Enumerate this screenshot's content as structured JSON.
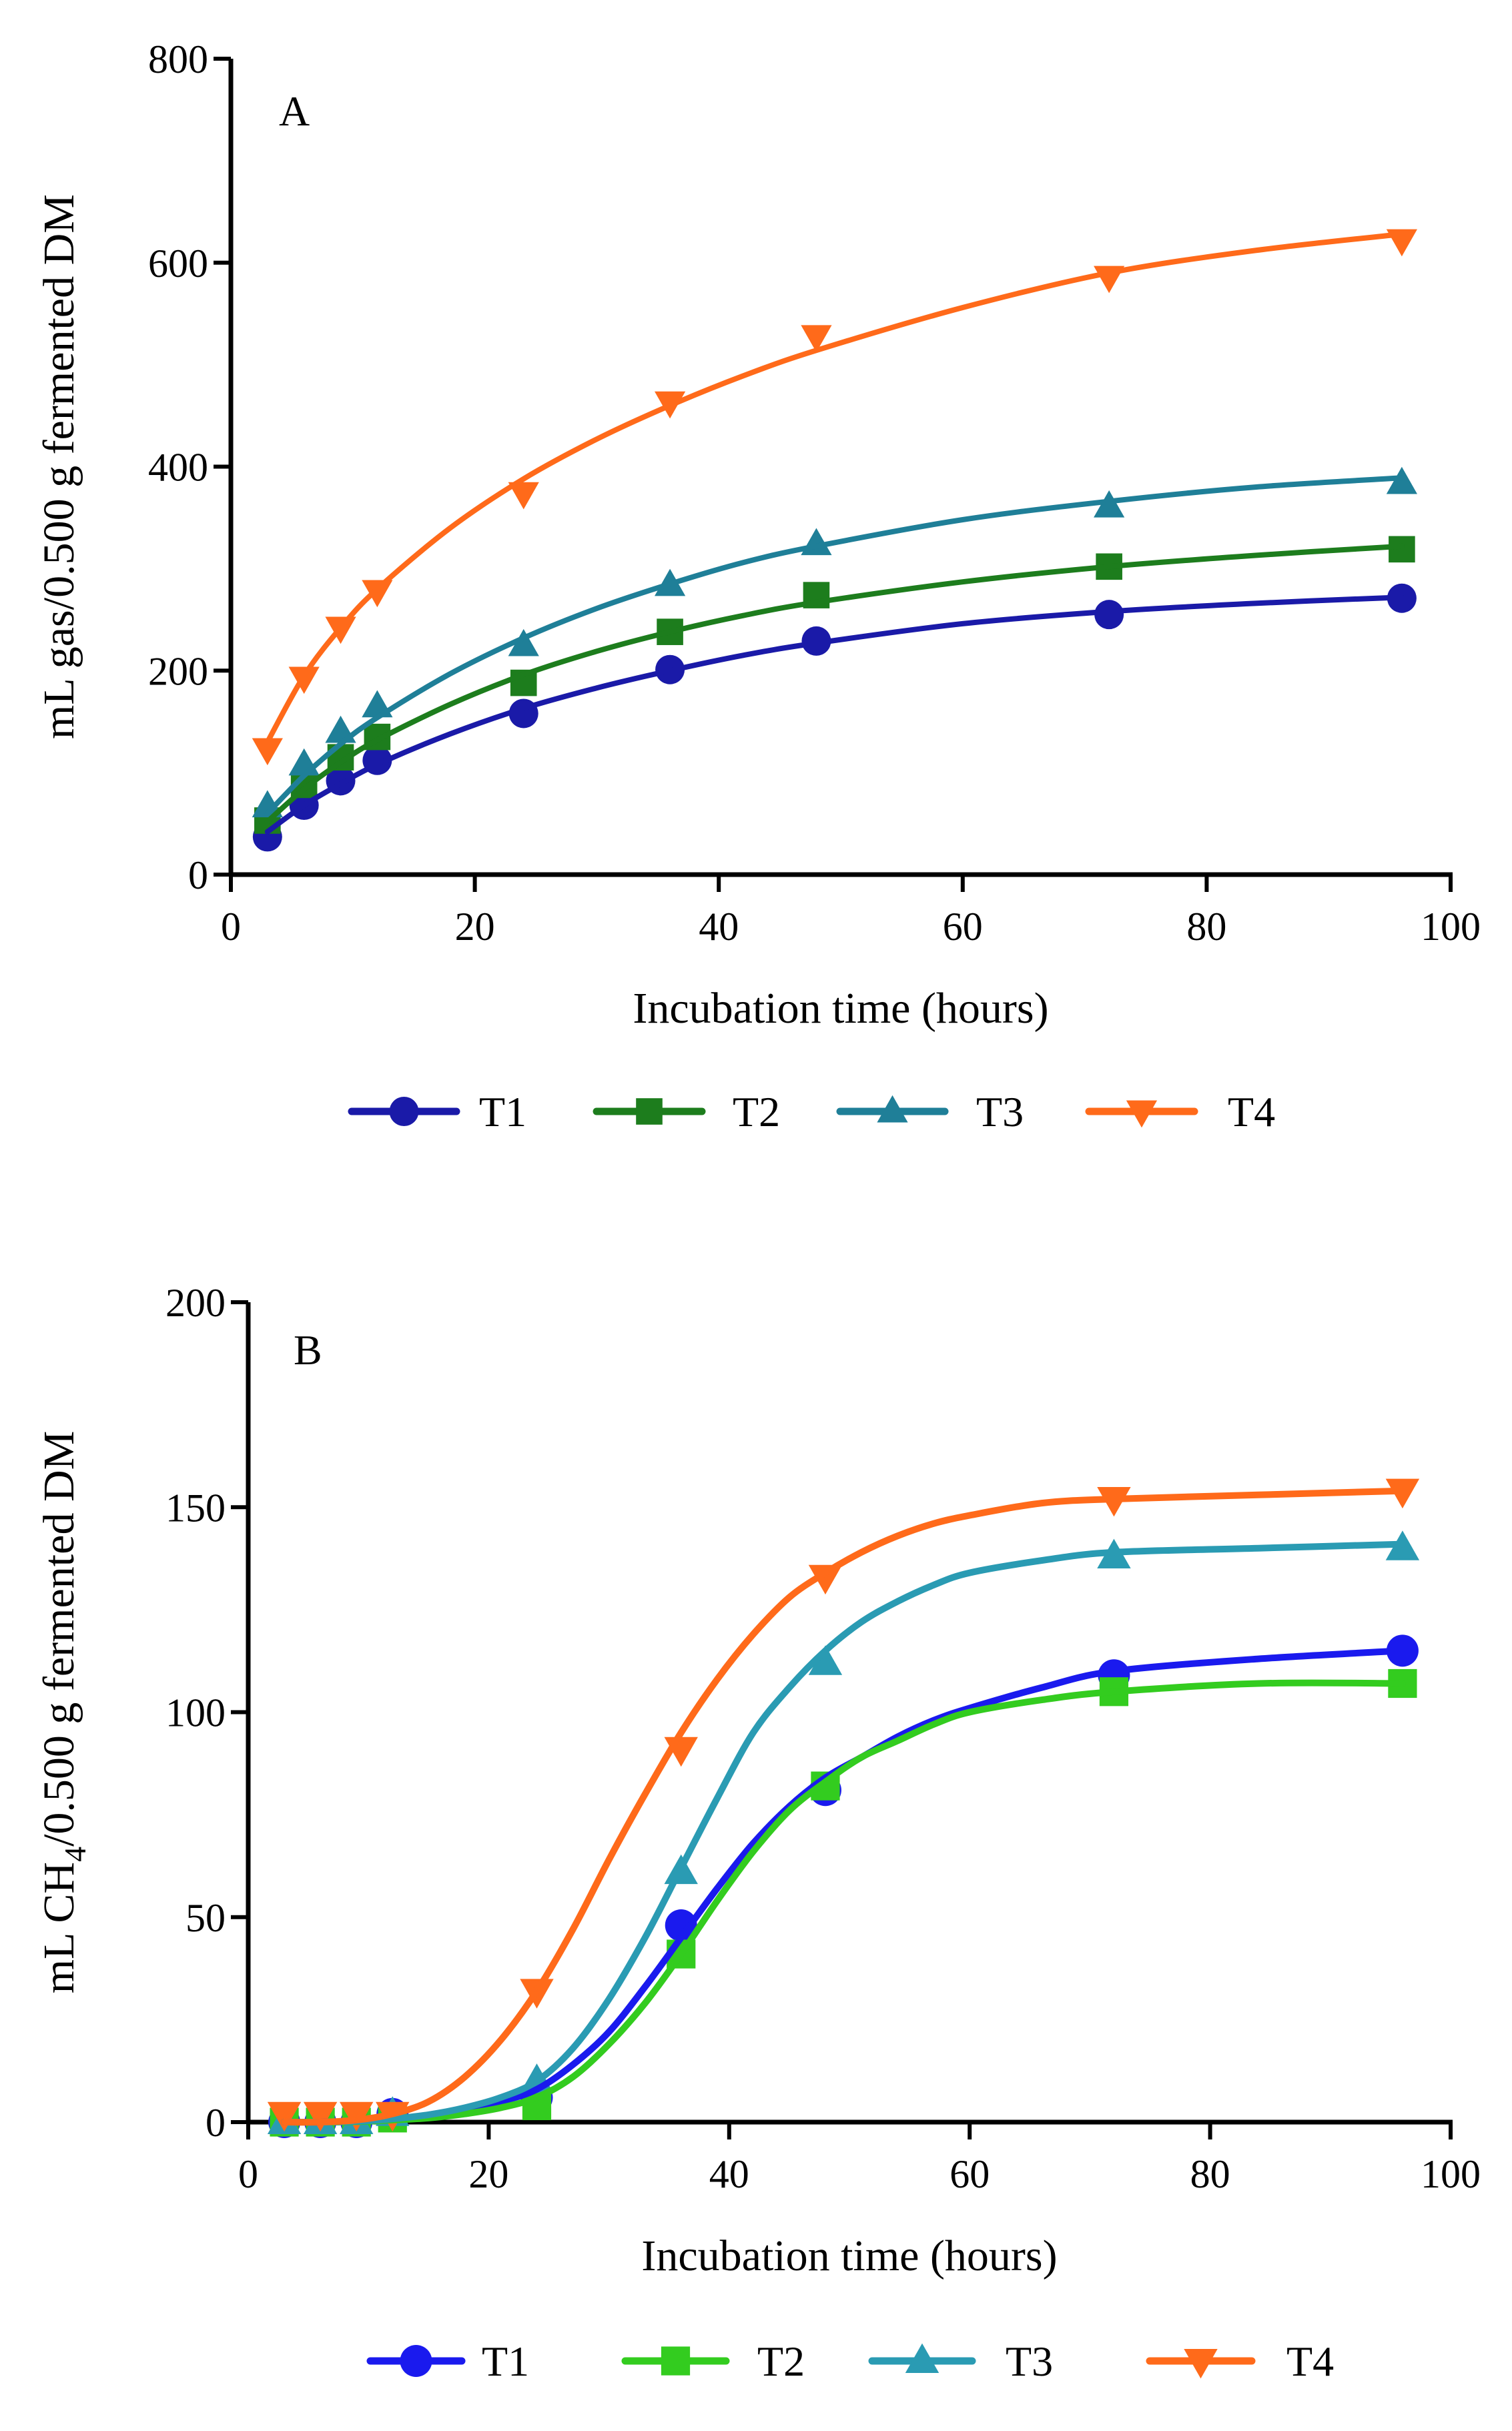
{
  "chart_data": [
    {
      "type": "line",
      "panel": "A",
      "xlabel": "Incubation time (hours)",
      "ylabel": "mL gas/0.500 g  fermented DM",
      "xlim": [
        0,
        100
      ],
      "ylim": [
        0,
        800
      ],
      "xticks": [
        0,
        20,
        40,
        60,
        80,
        100
      ],
      "yticks": [
        0,
        200,
        400,
        600,
        800
      ],
      "x": [
        3,
        6,
        9,
        12,
        24,
        36,
        48,
        72,
        96
      ],
      "legend_position": "bottom",
      "grid": false,
      "series": [
        {
          "name": "T1",
          "color": "#1a1aa8",
          "marker": "circle",
          "values": [
            37,
            68,
            92,
            112,
            158,
            201,
            229,
            255,
            271
          ],
          "fit": [
            [
              3,
              42
            ],
            [
              6,
              68
            ],
            [
              9,
              89
            ],
            [
              12,
              108
            ],
            [
              18,
              138
            ],
            [
              24,
              163
            ],
            [
              30,
              183
            ],
            [
              36,
              200
            ],
            [
              42,
              215
            ],
            [
              48,
              227
            ],
            [
              60,
              246
            ],
            [
              72,
              258
            ],
            [
              84,
              266
            ],
            [
              96,
              272
            ]
          ]
        },
        {
          "name": "T2",
          "color": "#1d7d1d",
          "marker": "square",
          "values": [
            53,
            88,
            115,
            135,
            188,
            238,
            274,
            302,
            319
          ],
          "fit": [
            [
              3,
              52
            ],
            [
              6,
              84
            ],
            [
              9,
              110
            ],
            [
              12,
              132
            ],
            [
              18,
              167
            ],
            [
              24,
              196
            ],
            [
              30,
              219
            ],
            [
              36,
              238
            ],
            [
              42,
              254
            ],
            [
              48,
              267
            ],
            [
              60,
              287
            ],
            [
              72,
              302
            ],
            [
              84,
              313
            ],
            [
              96,
              322
            ]
          ]
        },
        {
          "name": "T3",
          "color": "#1f7f98",
          "marker": "triangle-up",
          "values": [
            67,
            108,
            140,
            165,
            225,
            284,
            324,
            361,
            384
          ],
          "fit": [
            [
              3,
              60
            ],
            [
              6,
              97
            ],
            [
              9,
              128
            ],
            [
              12,
              154
            ],
            [
              18,
              197
            ],
            [
              24,
              232
            ],
            [
              30,
              261
            ],
            [
              36,
              285
            ],
            [
              42,
              306
            ],
            [
              48,
              322
            ],
            [
              60,
              348
            ],
            [
              72,
              366
            ],
            [
              84,
              380
            ],
            [
              96,
              389
            ]
          ]
        },
        {
          "name": "T4",
          "color": "#ff6a1a",
          "marker": "triangle-down",
          "values": [
            123,
            193,
            242,
            278,
            374,
            463,
            528,
            586,
            622
          ],
          "fit": [
            [
              3,
              130
            ],
            [
              6,
              195
            ],
            [
              9,
              242
            ],
            [
              12,
              280
            ],
            [
              18,
              340
            ],
            [
              24,
              388
            ],
            [
              30,
              427
            ],
            [
              36,
              460
            ],
            [
              42,
              489
            ],
            [
              48,
              514
            ],
            [
              60,
              556
            ],
            [
              72,
              590
            ],
            [
              84,
              612
            ],
            [
              96,
              628
            ]
          ]
        }
      ]
    },
    {
      "type": "line",
      "panel": "B",
      "xlabel": "Incubation time (hours)",
      "ylabel": "mL CH4/0.500 g  fermented DM",
      "ylabel_parts": {
        "pre": "mL CH",
        "sub": "4",
        "post": "/0.500 g  fermented DM"
      },
      "xlim": [
        0,
        100
      ],
      "ylim": [
        0,
        200
      ],
      "xticks": [
        0,
        20,
        40,
        60,
        80,
        100
      ],
      "yticks": [
        0,
        50,
        100,
        150,
        200
      ],
      "x": [
        3,
        6,
        9,
        12,
        24,
        36,
        48,
        72,
        96
      ],
      "legend_position": "bottom",
      "grid": false,
      "series": [
        {
          "name": "T1",
          "color": "#1a1aee",
          "marker": "circle",
          "values": [
            0,
            0,
            0,
            2,
            6,
            48,
            81,
            109,
            115
          ],
          "fit": [
            [
              3,
              0
            ],
            [
              6,
              0
            ],
            [
              9,
              0.2
            ],
            [
              12,
              0.8
            ],
            [
              15,
              1.5
            ],
            [
              18,
              3
            ],
            [
              21,
              5
            ],
            [
              24,
              8
            ],
            [
              27,
              14
            ],
            [
              30,
              22
            ],
            [
              33,
              33
            ],
            [
              36,
              45
            ],
            [
              39,
              57
            ],
            [
              42,
              68
            ],
            [
              45,
              77
            ],
            [
              48,
              84
            ],
            [
              51,
              89
            ],
            [
              54,
              94
            ],
            [
              57,
              98
            ],
            [
              60,
              101
            ],
            [
              66,
              106
            ],
            [
              72,
              110
            ],
            [
              84,
              113
            ],
            [
              96,
              115
            ]
          ]
        },
        {
          "name": "T2",
          "color": "#33cc1f",
          "marker": "square",
          "values": [
            0,
            0,
            0,
            1,
            4,
            41,
            82,
            105,
            107
          ],
          "fit": [
            [
              3,
              0
            ],
            [
              6,
              0
            ],
            [
              9,
              0.1
            ],
            [
              12,
              0.5
            ],
            [
              15,
              1
            ],
            [
              18,
              2
            ],
            [
              21,
              3.5
            ],
            [
              24,
              6
            ],
            [
              27,
              11
            ],
            [
              30,
              19
            ],
            [
              33,
              29
            ],
            [
              36,
              41
            ],
            [
              39,
              54
            ],
            [
              42,
              66
            ],
            [
              45,
              76
            ],
            [
              48,
              83
            ],
            [
              51,
              89
            ],
            [
              54,
              93
            ],
            [
              57,
              97
            ],
            [
              60,
              100
            ],
            [
              66,
              103
            ],
            [
              72,
              105
            ],
            [
              84,
              107
            ],
            [
              96,
              107
            ]
          ]
        },
        {
          "name": "T3",
          "color": "#2a9bb3",
          "marker": "triangle-up",
          "values": [
            0,
            0,
            0,
            2,
            10,
            61,
            112,
            138,
            140
          ],
          "fit": [
            [
              3,
              0
            ],
            [
              6,
              0
            ],
            [
              9,
              0.2
            ],
            [
              12,
              0.8
            ],
            [
              15,
              1.8
            ],
            [
              18,
              3.5
            ],
            [
              21,
              6
            ],
            [
              24,
              10
            ],
            [
              27,
              18
            ],
            [
              30,
              30
            ],
            [
              33,
              45
            ],
            [
              36,
              62
            ],
            [
              39,
              79
            ],
            [
              42,
              95
            ],
            [
              45,
              106
            ],
            [
              48,
              115
            ],
            [
              51,
              122
            ],
            [
              54,
              127
            ],
            [
              57,
              131
            ],
            [
              60,
              134
            ],
            [
              66,
              137
            ],
            [
              72,
              139
            ],
            [
              84,
              140
            ],
            [
              96,
              141
            ]
          ]
        },
        {
          "name": "T4",
          "color": "#ff6a1a",
          "marker": "triangle-down",
          "values": [
            2,
            2,
            2,
            2,
            32,
            91,
            133,
            152,
            154
          ],
          "fit": [
            [
              3,
              0
            ],
            [
              6,
              0
            ],
            [
              9,
              0.5
            ],
            [
              12,
              2
            ],
            [
              15,
              5
            ],
            [
              18,
              11
            ],
            [
              21,
              20
            ],
            [
              24,
              32
            ],
            [
              27,
              47
            ],
            [
              30,
              64
            ],
            [
              33,
              80
            ],
            [
              36,
              95
            ],
            [
              39,
              108
            ],
            [
              42,
              119
            ],
            [
              45,
              128
            ],
            [
              48,
              134
            ],
            [
              51,
              139
            ],
            [
              54,
              143
            ],
            [
              57,
              146
            ],
            [
              60,
              148
            ],
            [
              66,
              151
            ],
            [
              72,
              152
            ],
            [
              84,
              153
            ],
            [
              96,
              154
            ]
          ]
        }
      ]
    }
  ]
}
